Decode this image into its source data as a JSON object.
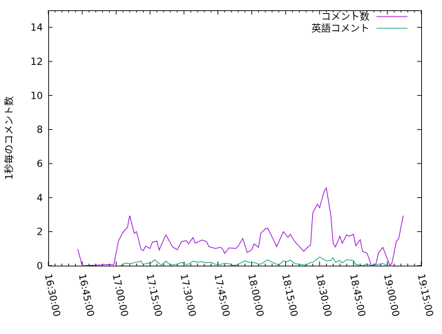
{
  "chart_data": {
    "type": "line",
    "ylabel": "1秒毎のコメント数",
    "xlabel": "",
    "ylim": [
      0,
      15
    ],
    "xlim": [
      "16:30:00",
      "19:15:00"
    ],
    "yticks": [
      "0",
      "2",
      "4",
      "6",
      "8",
      "10",
      "12",
      "14"
    ],
    "xticks": [
      "16:30:00",
      "16:45:00",
      "17:00:00",
      "17:15:00",
      "17:30:00",
      "17:45:00",
      "18:00:00",
      "18:15:00",
      "18:30:00",
      "18:45:00",
      "19:00:00",
      "19:15:00"
    ],
    "grid": false,
    "legend": "top-right",
    "series": [
      {
        "name": "コメント数",
        "color": "#9400d3",
        "points": [
          [
            "16:43",
            0.97
          ],
          [
            "16:45",
            0
          ],
          [
            "16:54",
            0.05
          ],
          [
            "16:59",
            0.07
          ],
          [
            "17:01",
            1.45
          ],
          [
            "17:03",
            1.96
          ],
          [
            "17:05",
            2.25
          ],
          [
            "17:06",
            2.94
          ],
          [
            "17:08",
            1.91
          ],
          [
            "17:09",
            2.0
          ],
          [
            "17:11",
            0.97
          ],
          [
            "17:12",
            0.88
          ],
          [
            "17:13",
            1.15
          ],
          [
            "17:15",
            1.01
          ],
          [
            "17:16",
            1.38
          ],
          [
            "17:18",
            1.45
          ],
          [
            "17:19",
            0.92
          ],
          [
            "17:22",
            1.81
          ],
          [
            "17:25",
            1.1
          ],
          [
            "17:27",
            0.94
          ],
          [
            "17:29",
            1.42
          ],
          [
            "17:31",
            1.47
          ],
          [
            "17:32",
            1.28
          ],
          [
            "17:34",
            1.65
          ],
          [
            "17:35",
            1.32
          ],
          [
            "17:38",
            1.51
          ],
          [
            "17:40",
            1.42
          ],
          [
            "17:41",
            1.12
          ],
          [
            "17:44",
            1.01
          ],
          [
            "17:46",
            1.08
          ],
          [
            "17:47",
            1.01
          ],
          [
            "17:48",
            0.72
          ],
          [
            "17:50",
            1.05
          ],
          [
            "17:53",
            1.01
          ],
          [
            "17:54",
            1.15
          ],
          [
            "17:56",
            1.6
          ],
          [
            "17:58",
            0.77
          ],
          [
            "18:00",
            0.94
          ],
          [
            "18:01",
            1.28
          ],
          [
            "18:03",
            1.08
          ],
          [
            "18:04",
            1.91
          ],
          [
            "18:06",
            2.16
          ],
          [
            "18:07",
            2.21
          ],
          [
            "18:09",
            1.69
          ],
          [
            "18:11",
            1.12
          ],
          [
            "18:14",
            2.0
          ],
          [
            "18:16",
            1.66
          ],
          [
            "18:17",
            1.85
          ],
          [
            "18:19",
            1.42
          ],
          [
            "18:23",
            0.84
          ],
          [
            "18:25",
            1.12
          ],
          [
            "18:26",
            1.21
          ],
          [
            "18:27",
            3.1
          ],
          [
            "18:29",
            3.62
          ],
          [
            "18:30",
            3.41
          ],
          [
            "18:32",
            4.36
          ],
          [
            "18:33",
            4.56
          ],
          [
            "18:35",
            2.94
          ],
          [
            "18:36",
            1.32
          ],
          [
            "18:37",
            1.1
          ],
          [
            "18:39",
            1.73
          ],
          [
            "18:40",
            1.32
          ],
          [
            "18:42",
            1.81
          ],
          [
            "18:43",
            1.73
          ],
          [
            "18:45",
            1.85
          ],
          [
            "18:46",
            1.17
          ],
          [
            "18:48",
            1.53
          ],
          [
            "18:49",
            0.84
          ],
          [
            "18:51",
            0.74
          ],
          [
            "18:53",
            0
          ],
          [
            "18:55",
            0.11
          ],
          [
            "18:56",
            0.74
          ],
          [
            "18:58",
            1.08
          ],
          [
            "18:59",
            0.74
          ],
          [
            "19:01",
            0.04
          ],
          [
            "19:02",
            0.13
          ],
          [
            "19:04",
            1.45
          ],
          [
            "19:05",
            1.58
          ],
          [
            "19:07",
            2.94
          ]
        ]
      },
      {
        "name": "英語コメント",
        "color": "#009e73",
        "points": [
          [
            "17:02",
            0
          ],
          [
            "17:04",
            0.15
          ],
          [
            "17:06",
            0.12
          ],
          [
            "17:09",
            0.2
          ],
          [
            "17:11",
            0.27
          ],
          [
            "17:12",
            0.07
          ],
          [
            "17:14",
            0.15
          ],
          [
            "17:15",
            0.11
          ],
          [
            "17:17",
            0.35
          ],
          [
            "17:20",
            0.03
          ],
          [
            "17:22",
            0.27
          ],
          [
            "17:24",
            0.03
          ],
          [
            "17:27",
            0.09
          ],
          [
            "17:29",
            0.19
          ],
          [
            "17:31",
            0.07
          ],
          [
            "17:32",
            0.08
          ],
          [
            "17:34",
            0.27
          ],
          [
            "17:36",
            0.2
          ],
          [
            "17:38",
            0.23
          ],
          [
            "17:40",
            0.17
          ],
          [
            "17:42",
            0.19
          ],
          [
            "17:44",
            0.07
          ],
          [
            "17:46",
            0.07
          ],
          [
            "17:48",
            0.13
          ],
          [
            "17:50",
            0.12
          ],
          [
            "17:51",
            0.03
          ],
          [
            "17:53",
            0.03
          ],
          [
            "17:57",
            0.28
          ],
          [
            "17:59",
            0.2
          ],
          [
            "18:01",
            0.19
          ],
          [
            "18:03",
            0.09
          ],
          [
            "18:04",
            0.09
          ],
          [
            "18:07",
            0.34
          ],
          [
            "18:09",
            0.2
          ],
          [
            "18:12",
            0.03
          ],
          [
            "18:14",
            0.28
          ],
          [
            "18:16",
            0.24
          ],
          [
            "18:17",
            0.34
          ],
          [
            "18:19",
            0.13
          ],
          [
            "18:21",
            0.07
          ],
          [
            "18:24",
            0.03
          ],
          [
            "18:26",
            0.19
          ],
          [
            "18:27",
            0.2
          ],
          [
            "18:30",
            0.51
          ],
          [
            "18:33",
            0.28
          ],
          [
            "18:35",
            0.31
          ],
          [
            "18:36",
            0.47
          ],
          [
            "18:37",
            0.2
          ],
          [
            "18:39",
            0.31
          ],
          [
            "18:40",
            0.16
          ],
          [
            "18:42",
            0.35
          ],
          [
            "18:45",
            0.3
          ],
          [
            "18:46",
            0.07
          ],
          [
            "18:49",
            0
          ],
          [
            "18:51",
            0.11
          ],
          [
            "18:53",
            0
          ],
          [
            "18:58",
            0.13
          ],
          [
            "19:00",
            0
          ],
          [
            "19:02",
            0
          ]
        ]
      }
    ]
  }
}
